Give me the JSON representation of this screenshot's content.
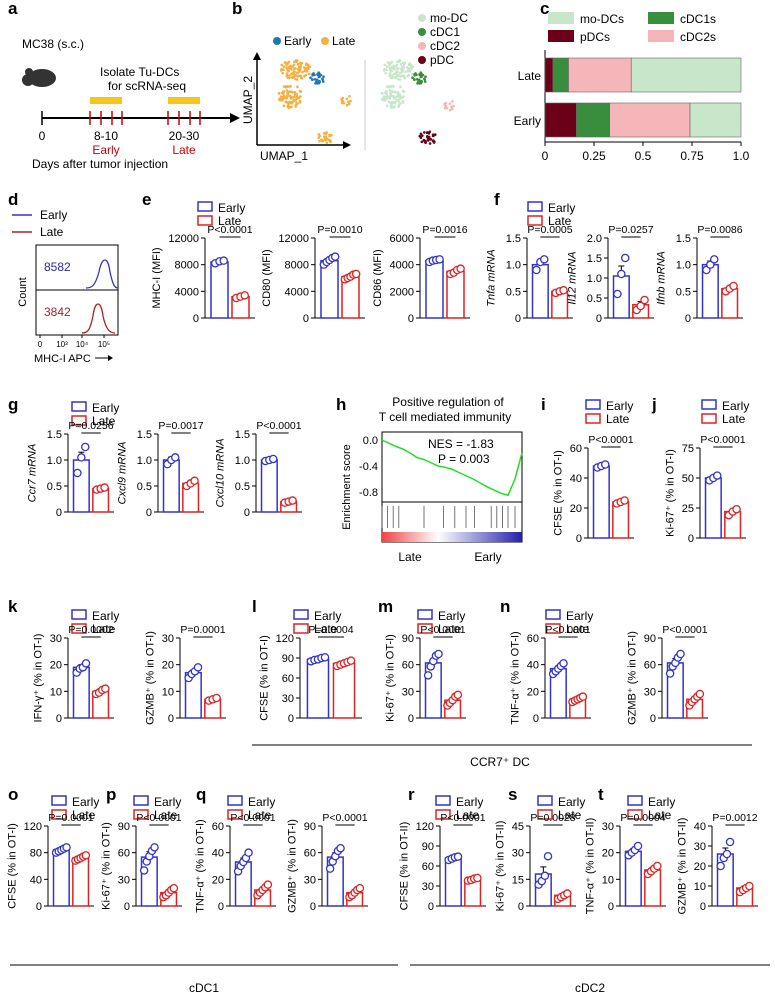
{
  "colors": {
    "early": "#3333cc",
    "late": "#dd2222",
    "axis": "#000000",
    "line_early": "#3333cc",
    "line_late": "#aa2222",
    "modc": "#c8e6c9",
    "cdc1": "#388e3c",
    "cdc2": "#f4b6b8",
    "pdc": "#6b0018",
    "umap_early": "#1f77b4",
    "umap_late": "#f5b041",
    "gsea": "#22dd22"
  },
  "legend": {
    "early": "Early",
    "late": "Late"
  },
  "panel_a": {
    "letter": "a",
    "model": "MC38 (s.c.)",
    "isolate_line1": "Isolate Tu-DCs",
    "isolate_line2": "for scRNA-seq",
    "ticks": [
      "0",
      "8-10",
      "20-30"
    ],
    "early": "Early",
    "late": "Late",
    "xlabel": "Days after tumor injection"
  },
  "panel_b": {
    "letter": "b",
    "legend_left": [
      "Early",
      "Late"
    ],
    "legend_right": [
      "mo-DC",
      "cDC1",
      "cDC2",
      "pDC"
    ],
    "xlabel": "UMAP_1",
    "ylabel": "UMAP_2"
  },
  "chart_data": [
    {
      "panel": "c",
      "type": "bar",
      "orientation": "horizontal",
      "stacked": true,
      "categories": [
        "Late",
        "Early"
      ],
      "series": [
        {
          "name": "pDCs",
          "values": [
            0.04,
            0.16
          ]
        },
        {
          "name": "cDC1s",
          "values": [
            0.08,
            0.17
          ]
        },
        {
          "name": "cDC2s",
          "values": [
            0.32,
            0.41
          ]
        },
        {
          "name": "mo-DCs",
          "values": [
            0.56,
            0.26
          ]
        }
      ],
      "legend": [
        "mo-DCs",
        "cDC1s",
        "pDCs",
        "cDC2s"
      ],
      "xticks": [
        "0",
        "0.25",
        "0.5",
        "0.75",
        "1.0"
      ],
      "xlim": [
        0,
        1
      ]
    },
    {
      "panel": "d",
      "type": "histogram",
      "series": [
        {
          "name": "Early",
          "mfi": "8582"
        },
        {
          "name": "Late",
          "mfi": "3842"
        }
      ],
      "xlabel": "MHC-I APC",
      "ylabel": "Count",
      "xticks": [
        "0",
        "10³",
        "10⁴",
        "10⁵"
      ]
    },
    {
      "panel": "e",
      "type": "bar",
      "ylabel": "MHC-I (MFI)",
      "p": "P<0.0001",
      "ylim": [
        0,
        12000
      ],
      "yticks": [
        "0",
        "4000",
        "8000",
        "12000"
      ],
      "values": [
        8400,
        3200
      ],
      "err": [
        300,
        150
      ],
      "early": [
        8200,
        8500,
        8600
      ],
      "late": [
        3000,
        3200,
        3400
      ]
    },
    {
      "panel": "e2",
      "type": "bar",
      "ylabel": "CD80 (MFI)",
      "p": "P=0.0010",
      "ylim": [
        0,
        12000
      ],
      "yticks": [
        "0",
        "4000",
        "8000",
        "12000"
      ],
      "values": [
        8600,
        6200
      ],
      "err": [
        400,
        300
      ],
      "early": [
        8000,
        8400,
        8700,
        9000,
        9200
      ],
      "late": [
        5800,
        6000,
        6200,
        6500,
        6600
      ]
    },
    {
      "panel": "e3",
      "type": "bar",
      "ylabel": "CD86 (MFI)",
      "p": "P=0.0016",
      "ylim": [
        0,
        6000
      ],
      "yticks": [
        "0",
        "2000",
        "4000",
        "6000"
      ],
      "values": [
        4300,
        3500
      ],
      "err": [
        120,
        150
      ],
      "early": [
        4200,
        4300,
        4350,
        4400
      ],
      "late": [
        3300,
        3400,
        3600,
        3700
      ]
    },
    {
      "panel": "f",
      "type": "bar",
      "ylabel": "Tnfa mRNA",
      "italic": true,
      "p": "P=0.0005",
      "ylim": [
        0,
        1.5
      ],
      "yticks": [
        "0",
        "0.5",
        "1.0",
        "1.5"
      ],
      "values": [
        1.0,
        0.5
      ],
      "err": [
        0.06,
        0.03
      ],
      "early": [
        0.9,
        1.05,
        1.1
      ],
      "late": [
        0.47,
        0.5,
        0.52
      ]
    },
    {
      "panel": "f2",
      "type": "bar",
      "ylabel": "Il12 mRNA",
      "italic": true,
      "p": "P=0.0257",
      "ylim": [
        0,
        2.0
      ],
      "yticks": [
        "0",
        "0.5",
        "1.0",
        "1.5",
        "2.0"
      ],
      "values": [
        1.05,
        0.33
      ],
      "err": [
        0.25,
        0.08
      ],
      "early": [
        0.6,
        1.1,
        1.5
      ],
      "late": [
        0.2,
        0.3,
        0.45
      ]
    },
    {
      "panel": "f3",
      "type": "bar",
      "ylabel": "Ifnb mRNA",
      "italic": true,
      "p": "P=0.0086",
      "ylim": [
        0,
        1.5
      ],
      "yticks": [
        "0",
        "0.5",
        "1.0",
        "1.5"
      ],
      "values": [
        1.0,
        0.55
      ],
      "err": [
        0.07,
        0.05
      ],
      "early": [
        0.9,
        1.0,
        1.1
      ],
      "late": [
        0.5,
        0.55,
        0.6
      ]
    },
    {
      "panel": "g",
      "type": "bar",
      "ylabel": "Ccr7 mRNA",
      "italic": true,
      "p": "P=0.0256",
      "ylim": [
        0,
        1.5
      ],
      "yticks": [
        "0",
        "0.5",
        "1.0",
        "1.5"
      ],
      "values": [
        1.0,
        0.45
      ],
      "err": [
        0.15,
        0.03
      ],
      "early": [
        0.75,
        1.05,
        1.25
      ],
      "late": [
        0.43,
        0.45,
        0.47
      ]
    },
    {
      "panel": "g2",
      "type": "bar",
      "ylabel": "Cxcl9 mRNA",
      "italic": true,
      "p": "P=0.0017",
      "ylim": [
        0,
        1.5
      ],
      "yticks": [
        "0",
        "0.5",
        "1.0",
        "1.5"
      ],
      "values": [
        1.0,
        0.55
      ],
      "err": [
        0.06,
        0.05
      ],
      "early": [
        0.92,
        1.0,
        1.05
      ],
      "late": [
        0.5,
        0.55,
        0.6
      ]
    },
    {
      "panel": "g3",
      "type": "bar",
      "ylabel": "Cxcl10 mRNA",
      "italic": true,
      "p": "P<0.0001",
      "ylim": [
        0,
        1.5
      ],
      "yticks": [
        "0",
        "0.5",
        "1.0",
        "1.5"
      ],
      "values": [
        1.0,
        0.2
      ],
      "err": [
        0.03,
        0.02
      ],
      "early": [
        0.98,
        1.0,
        1.02
      ],
      "late": [
        0.18,
        0.2,
        0.22
      ]
    },
    {
      "panel": "h",
      "type": "line",
      "title": "Positive regulation of",
      "title2": "T cell mediated  immunity",
      "ylabel": "Enrichment score",
      "nes": "NES = -1.83",
      "p": "P = 0.003",
      "yticks": [
        "0.0",
        "-0.4",
        "-0.8"
      ],
      "ylim": [
        -1.0,
        0.1
      ],
      "xlabels": [
        "Late",
        "Early"
      ],
      "x": [
        0,
        5,
        10,
        15,
        20,
        25,
        30,
        35,
        40,
        45,
        50,
        55,
        60,
        65,
        70,
        75,
        80,
        85,
        90,
        95,
        100
      ],
      "y": [
        0.0,
        -0.05,
        -0.1,
        -0.14,
        -0.2,
        -0.27,
        -0.3,
        -0.35,
        -0.4,
        -0.42,
        -0.45,
        -0.5,
        -0.55,
        -0.6,
        -0.66,
        -0.72,
        -0.77,
        -0.82,
        -0.85,
        -0.6,
        -0.2
      ]
    },
    {
      "panel": "i",
      "type": "bar",
      "ylabel": "CFSE (% in OT-I)",
      "p": "P<0.0001",
      "ylim": [
        0,
        60
      ],
      "yticks": [
        "0",
        "20",
        "40",
        "60"
      ],
      "values": [
        48,
        24
      ],
      "err": [
        1,
        1
      ],
      "early": [
        47,
        48,
        49
      ],
      "late": [
        23,
        24,
        25
      ]
    },
    {
      "panel": "j",
      "type": "bar",
      "ylabel": "Ki-67⁺ (% in OT-I)",
      "p": "P<0.0001",
      "ylim": [
        0,
        75
      ],
      "yticks": [
        "0",
        "25",
        "50",
        "75"
      ],
      "values": [
        50,
        22
      ],
      "err": [
        1.5,
        2
      ],
      "early": [
        48,
        50,
        52
      ],
      "late": [
        19,
        22,
        24
      ]
    },
    {
      "panel": "k",
      "type": "bar",
      "ylabel": "IFN-γ⁺ (% in OT-I)",
      "p": "P=0.0002",
      "ylim": [
        0,
        30
      ],
      "yticks": [
        "0",
        "10",
        "20",
        "30"
      ],
      "values": [
        19,
        10
      ],
      "err": [
        1,
        1
      ],
      "early": [
        17,
        18.5,
        19,
        20.5
      ],
      "late": [
        9,
        9.5,
        10.5,
        11
      ]
    },
    {
      "panel": "k2",
      "type": "bar",
      "ylabel": "GZMB⁺ (% in OT-I)",
      "p": "P=0.0001",
      "ylim": [
        0,
        30
      ],
      "yticks": [
        "0",
        "10",
        "20",
        "30"
      ],
      "values": [
        17,
        7
      ],
      "err": [
        1,
        0.5
      ],
      "early": [
        15,
        16.5,
        17.5,
        19
      ],
      "late": [
        6.5,
        7,
        7.5
      ]
    },
    {
      "panel": "l",
      "type": "bar",
      "ylabel": "CFSE (% in OT-I)",
      "p": "P=0.0004",
      "ylim": [
        0,
        120
      ],
      "yticks": [
        "0",
        "30",
        "60",
        "90",
        "120"
      ],
      "values": [
        88,
        82
      ],
      "err": [
        2,
        2
      ],
      "early": [
        85,
        87,
        88,
        90,
        91
      ],
      "late": [
        78,
        80,
        82,
        84,
        86
      ]
    },
    {
      "panel": "m",
      "type": "bar",
      "ylabel": "Ki-67⁺ (% in OT-I)",
      "p": "P<0.0001",
      "ylim": [
        0,
        90
      ],
      "yticks": [
        "0",
        "30",
        "60",
        "90"
      ],
      "values": [
        62,
        20
      ],
      "err": [
        5,
        3
      ],
      "early": [
        48,
        58,
        64,
        70,
        72
      ],
      "late": [
        14,
        17,
        20,
        24,
        26
      ]
    },
    {
      "panel": "n",
      "type": "bar",
      "ylabel": "TNF-α⁺ (% in OT-I)",
      "p": "P<0.0001",
      "ylim": [
        0,
        60
      ],
      "yticks": [
        "0",
        "20",
        "40",
        "60"
      ],
      "values": [
        37,
        14
      ],
      "err": [
        2,
        1
      ],
      "early": [
        33,
        35,
        37,
        39,
        41
      ],
      "late": [
        12,
        13,
        14,
        15,
        16
      ]
    },
    {
      "panel": "n2",
      "type": "bar",
      "ylabel": "GZMB⁺ (% in OT-I)",
      "p": "P<0.0001",
      "ylim": [
        0,
        90
      ],
      "yticks": [
        "0",
        "30",
        "60",
        "90"
      ],
      "values": [
        62,
        21
      ],
      "err": [
        5,
        3
      ],
      "early": [
        50,
        58,
        62,
        68,
        72
      ],
      "late": [
        14,
        18,
        21,
        24,
        27
      ]
    },
    {
      "panel": "o",
      "type": "bar",
      "ylabel": "CFSE (% in OT-I)",
      "p": "P=0.0001",
      "ylim": [
        0,
        120
      ],
      "yticks": [
        "0",
        "40",
        "80",
        "120"
      ],
      "values": [
        84,
        72
      ],
      "err": [
        2,
        2
      ],
      "early": [
        80,
        82,
        84,
        86,
        88
      ],
      "late": [
        68,
        70,
        72,
        74,
        76
      ]
    },
    {
      "panel": "p",
      "type": "bar",
      "ylabel": "Ki-67⁺ (% in OT-I)",
      "p": "P<0.0001",
      "ylim": [
        0,
        90
      ],
      "yticks": [
        "0",
        "30",
        "60",
        "90"
      ],
      "values": [
        55,
        15
      ],
      "err": [
        6,
        3
      ],
      "early": [
        40,
        50,
        56,
        62,
        66
      ],
      "late": [
        10,
        12,
        15,
        18,
        20
      ]
    },
    {
      "panel": "q",
      "type": "bar",
      "ylabel": "TNF-α⁺ (% in OT-I)",
      "p": "P<0.0001",
      "ylim": [
        0,
        60
      ],
      "yticks": [
        "0",
        "20",
        "40",
        "60"
      ],
      "values": [
        33,
        12
      ],
      "err": [
        3,
        2
      ],
      "early": [
        26,
        30,
        33,
        36,
        40
      ],
      "late": [
        8,
        10,
        12,
        14,
        16
      ]
    },
    {
      "panel": "q2",
      "type": "bar",
      "ylabel": "GZMB⁺ (% in OT-I)",
      "p": "P<0.0001",
      "ylim": [
        0,
        90
      ],
      "yticks": [
        "0",
        "30",
        "60",
        "90"
      ],
      "values": [
        55,
        15
      ],
      "err": [
        5,
        3
      ],
      "early": [
        42,
        50,
        56,
        62,
        65
      ],
      "late": [
        10,
        12,
        15,
        18,
        20
      ]
    },
    {
      "panel": "r",
      "type": "bar",
      "ylabel": "CFSE (% in OT-II)",
      "p": "P<0.0001",
      "ylim": [
        0,
        120
      ],
      "yticks": [
        "0",
        "30",
        "60",
        "90",
        "120"
      ],
      "values": [
        72,
        40
      ],
      "err": [
        1.5,
        1
      ],
      "early": [
        69,
        71,
        73,
        74
      ],
      "late": [
        38,
        39,
        41,
        42
      ]
    },
    {
      "panel": "s",
      "type": "bar",
      "ylabel": "Ki-67⁺ (% in OT-II)",
      "p": "P=0.0028",
      "ylim": [
        0,
        45
      ],
      "yticks": [
        "0",
        "15",
        "30",
        "45"
      ],
      "values": [
        18,
        6
      ],
      "err": [
        4,
        1
      ],
      "early": [
        12,
        14,
        17,
        28
      ],
      "late": [
        4,
        5,
        6,
        7
      ]
    },
    {
      "panel": "t",
      "type": "bar",
      "ylabel": "TNF-α⁺ (% in OT-II)",
      "p": "P=0.0004",
      "ylim": [
        0,
        30
      ],
      "yticks": [
        "0",
        "10",
        "20",
        "30"
      ],
      "values": [
        20.5,
        13.5
      ],
      "err": [
        1,
        1
      ],
      "early": [
        19,
        20,
        21,
        22.5
      ],
      "late": [
        12,
        13,
        14,
        15
      ]
    },
    {
      "panel": "t2",
      "type": "bar",
      "ylabel": "GZMB⁺ (% in OT-II)",
      "p": "P=0.0012",
      "ylim": [
        0,
        40
      ],
      "yticks": [
        "0",
        "10",
        "20",
        "30",
        "40"
      ],
      "values": [
        26,
        9
      ],
      "err": [
        3,
        1
      ],
      "early": [
        20,
        24,
        26,
        32
      ],
      "late": [
        7,
        8,
        9,
        10
      ]
    }
  ],
  "letters": {
    "c": "c",
    "d": "d",
    "e": "e",
    "f": "f",
    "g": "g",
    "h": "h",
    "i": "i",
    "j": "j",
    "k": "k",
    "l": "l",
    "m": "m",
    "n": "n",
    "o": "o",
    "p": "p",
    "q": "q",
    "r": "r",
    "s": "s",
    "t": "t"
  },
  "group_labels": {
    "ccr7": "CCR7⁺ DC",
    "cdc1": "cDC1",
    "cdc2": "cDC2"
  }
}
